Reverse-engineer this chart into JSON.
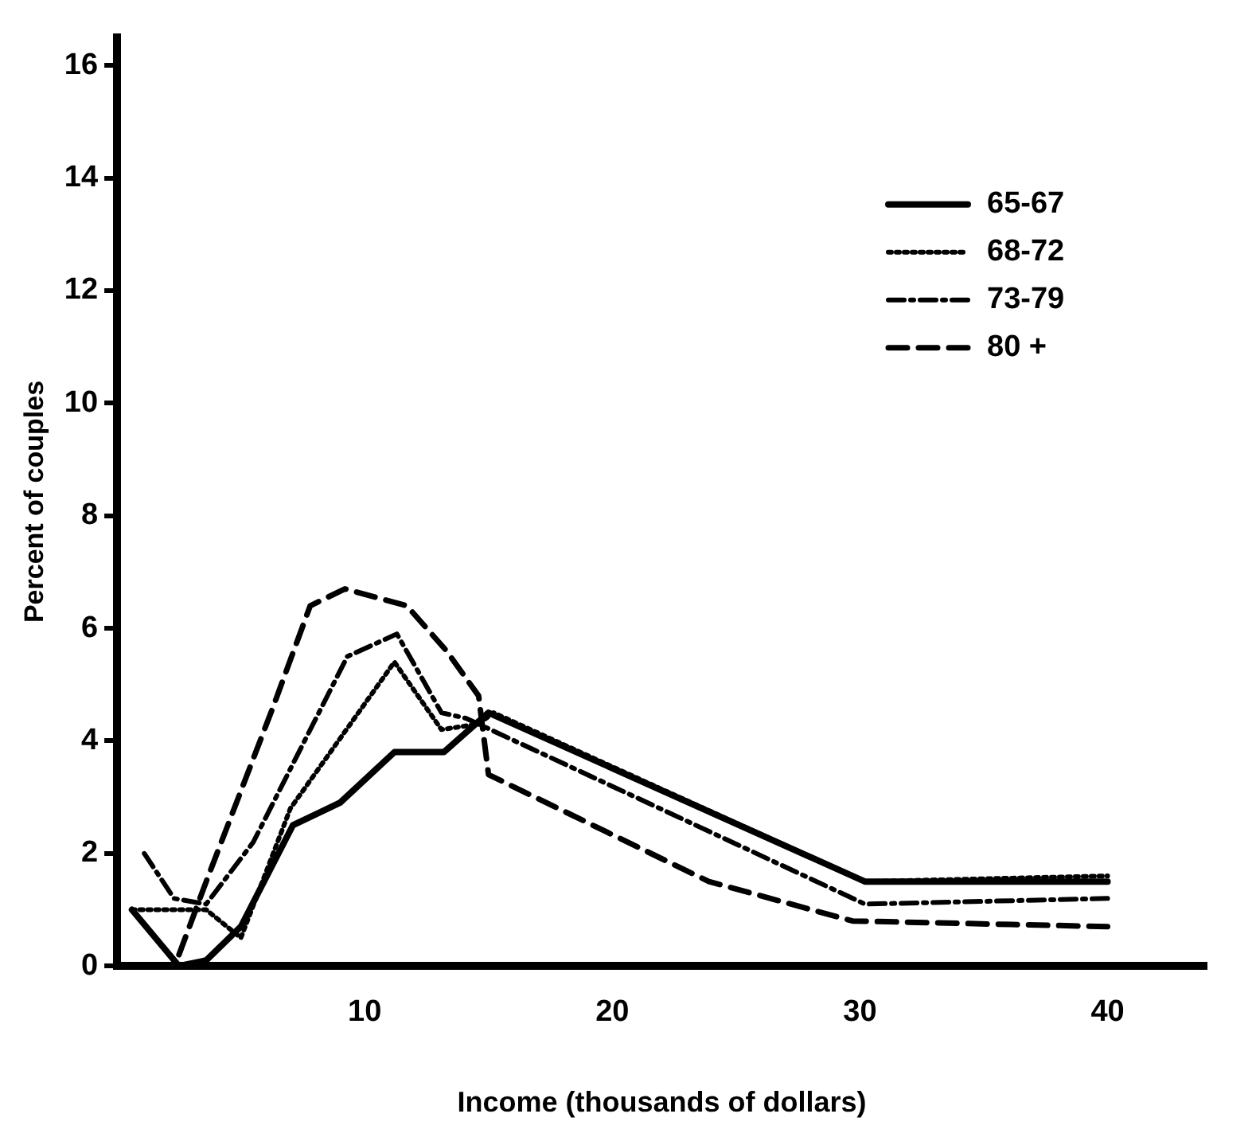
{
  "chart_data": {
    "type": "line",
    "xlabel": "Income (thousands of dollars)",
    "ylabel": "Percent of couples",
    "xlim": [
      0,
      44
    ],
    "xticks": [
      10,
      20,
      30,
      40
    ],
    "ylim": [
      0,
      16.5
    ],
    "yticks": [
      0,
      2,
      4,
      6,
      8,
      10,
      12,
      14,
      16
    ],
    "grid": false,
    "legend": "top right",
    "marker": "none",
    "series": [
      {
        "name": "65-67",
        "color": "#000000",
        "line_style": "solid",
        "x": [
          0.6,
          2.5,
          3.6,
          5,
          7.1,
          9,
          11.2,
          13.2,
          15,
          30.2,
          40
        ],
        "values": [
          1.0,
          0,
          0.1,
          0.7,
          2.5,
          2.9,
          3.8,
          3.8,
          4.5,
          1.5,
          1.5
        ]
      },
      {
        "name": "68-72",
        "color": "#000000",
        "line_style": "dotted",
        "x": [
          0.6,
          3.6,
          5,
          7,
          11.2,
          13.1,
          14.6,
          15.2,
          30.2,
          40
        ],
        "values": [
          1.0,
          1.0,
          0.5,
          2.8,
          5.4,
          4.2,
          4.3,
          4.5,
          1.5,
          1.6
        ]
      },
      {
        "name": "73-79",
        "color": "#000000",
        "line_style": "dashdot",
        "x": [
          1.1,
          2.3,
          3.6,
          5.5,
          9.3,
          11.3,
          13.1,
          14.1,
          18.5,
          30.2,
          40
        ],
        "values": [
          2.0,
          1.2,
          1.1,
          2.2,
          5.5,
          5.9,
          4.5,
          4.4,
          3.5,
          1.1,
          1.2
        ]
      },
      {
        "name": "80 +",
        "color": "#000000",
        "line_style": "dashed",
        "x": [
          2.5,
          3.6,
          6.3,
          7.8,
          9.2,
          11.7,
          13.3,
          14.6,
          15,
          23.9,
          29.7,
          40
        ],
        "values": [
          0.2,
          1.5,
          4.6,
          6.4,
          6.7,
          6.4,
          5.6,
          4.8,
          3.4,
          1.5,
          0.8,
          0.7
        ]
      }
    ]
  }
}
